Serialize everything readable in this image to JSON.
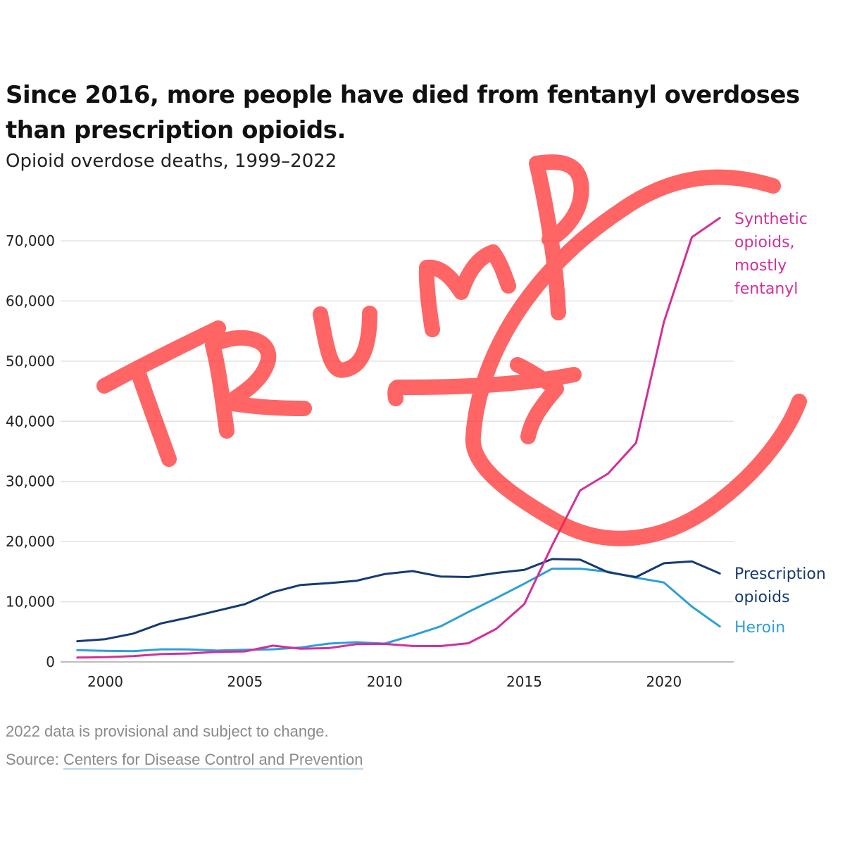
{
  "header": {
    "title": "Since 2016, more people have died from fentanyl overdoses than prescription opioids.",
    "subtitle": "Opioid overdose deaths, 1999–2022"
  },
  "footer": {
    "note": "2022 data is provisional and subject to change.",
    "source_prefix": "Source: ",
    "source_link": "Centers for Disease Control and Prevention"
  },
  "annotation": {
    "text": "TRUMP",
    "color": "#ff2a2a"
  },
  "chart_data": {
    "type": "line",
    "title": "Since 2016, more people have died from fentanyl overdoses than prescription opioids.",
    "subtitle": "Opioid overdose deaths, 1999–2022",
    "x": [
      1999,
      2000,
      2001,
      2002,
      2003,
      2004,
      2005,
      2006,
      2007,
      2008,
      2009,
      2010,
      2011,
      2012,
      2013,
      2014,
      2015,
      2016,
      2017,
      2018,
      2019,
      2020,
      2021,
      2022
    ],
    "xlim": [
      1998.4,
      2022.5
    ],
    "ylim": [
      0,
      70000
    ],
    "x_ticks": [
      "2000",
      "2005",
      "2010",
      "2015",
      "2020"
    ],
    "y_ticks": [
      "0",
      "10,000",
      "20,000",
      "30,000",
      "40,000",
      "50,000",
      "60,000",
      "70,000"
    ],
    "grid": true,
    "legend": "direct labels at right end of lines",
    "series": [
      {
        "label_lines": [
          "Synthetic",
          "opioids,",
          "mostly",
          "fentanyl"
        ],
        "color": "#d1309a",
        "values": [
          730,
          780,
          960,
          1300,
          1400,
          1660,
          1740,
          2700,
          2200,
          2300,
          2950,
          3000,
          2650,
          2630,
          3100,
          5500,
          9600,
          19400,
          28500,
          31300,
          36400,
          56500,
          70600,
          73800
        ]
      },
      {
        "label_lines": [
          "Prescription",
          "opioids"
        ],
        "color": "#163a73",
        "values": [
          3440,
          3780,
          4700,
          6400,
          7400,
          8500,
          9600,
          11600,
          12800,
          13100,
          13500,
          14600,
          15100,
          14200,
          14100,
          14800,
          15300,
          17100,
          17000,
          14900,
          14100,
          16400,
          16700,
          14700
        ]
      },
      {
        "label_lines": [
          "Heroin"
        ],
        "color": "#2e9fd8",
        "values": [
          1960,
          1840,
          1780,
          2090,
          2080,
          1880,
          2010,
          2090,
          2400,
          3040,
          3280,
          3040,
          4400,
          5900,
          8300,
          10600,
          13000,
          15500,
          15500,
          15000,
          14000,
          13200,
          9200,
          5900
        ]
      }
    ]
  }
}
